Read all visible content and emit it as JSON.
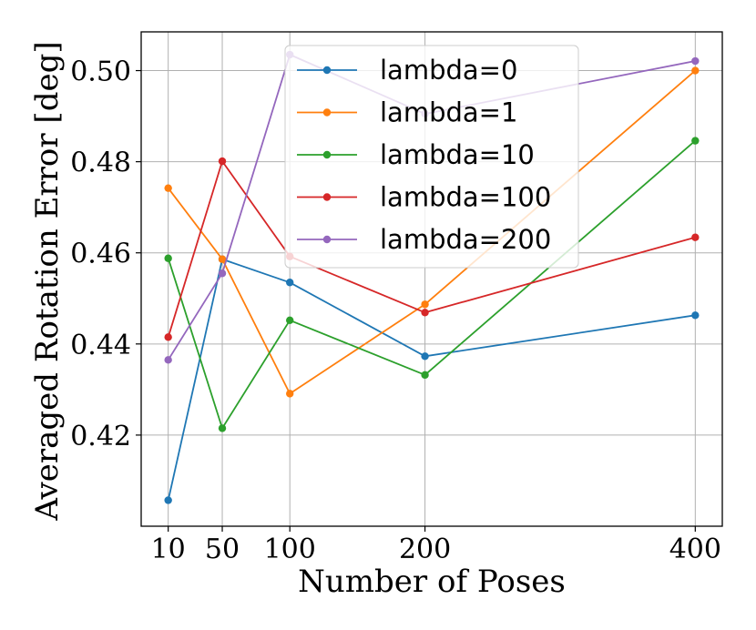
{
  "chart_data": {
    "type": "line",
    "title": "",
    "xlabel": "Number of Poses",
    "ylabel": "Averaged Rotation Error [deg]",
    "x": [
      10,
      50,
      100,
      200,
      400
    ],
    "xticks": [
      "10",
      "50",
      "100",
      "200",
      "400"
    ],
    "yticks": [
      "0.42",
      "0.44",
      "0.46",
      "0.48",
      "0.50"
    ],
    "xlim": [
      -10,
      420
    ],
    "ylim": [
      0.4,
      0.5085
    ],
    "grid": true,
    "legend": "top-center",
    "series": [
      {
        "name": "lambda=0",
        "color": "#1f77b4",
        "values": [
          0.4057,
          0.4586,
          0.4535,
          0.4373,
          0.4463
        ]
      },
      {
        "name": "lambda=1",
        "color": "#ff7f0e",
        "values": [
          0.4742,
          0.4586,
          0.4291,
          0.4487,
          0.5
        ]
      },
      {
        "name": "lambda=10",
        "color": "#2ca02c",
        "values": [
          0.4588,
          0.4215,
          0.4452,
          0.4332,
          0.4846
        ]
      },
      {
        "name": "lambda=100",
        "color": "#d62728",
        "values": [
          0.4415,
          0.4801,
          0.4592,
          0.4469,
          0.4634
        ]
      },
      {
        "name": "lambda=200",
        "color": "#9467bd",
        "values": [
          0.4365,
          0.4555,
          0.5035,
          0.4905,
          0.5021
        ]
      }
    ]
  }
}
